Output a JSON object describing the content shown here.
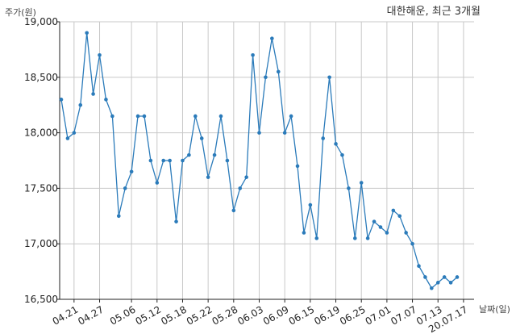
{
  "chart_data": {
    "type": "line",
    "title": "대한해운, 최근 3개월",
    "xlabel": "날짜(일)",
    "ylabel": "주가(원)",
    "ylim": [
      16500,
      19000
    ],
    "yticks": [
      16500,
      17000,
      17500,
      18000,
      18500,
      19000
    ],
    "ytick_labels": [
      "16,500",
      "17,000",
      "17,500",
      "18,000",
      "18,500",
      "19,000"
    ],
    "grid": true,
    "line_color": "#2b7bba",
    "xtick_labels": [
      "04.21",
      "04.27",
      "05.06",
      "05.12",
      "05.18",
      "05.22",
      "05.28",
      "06.03",
      "06.09",
      "06.15",
      "06.19",
      "06.25",
      "07.01",
      "07.07",
      "07.13",
      "20.07.17"
    ],
    "xtick_index": [
      2,
      6,
      11,
      15,
      19,
      23,
      27,
      31,
      35,
      39,
      43,
      47,
      51,
      55,
      59,
      63
    ],
    "series": [
      {
        "values": [
          18300,
          17950,
          18000,
          18250,
          18900,
          18350,
          18700,
          18300,
          18150,
          17250,
          17500,
          17650,
          18150,
          18150,
          17750,
          17550,
          17750,
          17750,
          17200,
          17750,
          17800,
          18150,
          17950,
          17600,
          17800,
          18150,
          17750,
          17300,
          17500,
          17600,
          18700,
          18000,
          18500,
          18850,
          18550,
          18000,
          18150,
          17700,
          17100,
          17350,
          17050,
          17950,
          18500,
          17900,
          17800,
          17500,
          17050,
          17550,
          17050,
          17200,
          17150,
          17100,
          17300,
          17250,
          17100,
          17000,
          16800,
          16700,
          16600,
          16650,
          16700,
          16650,
          16700
        ]
      }
    ]
  }
}
